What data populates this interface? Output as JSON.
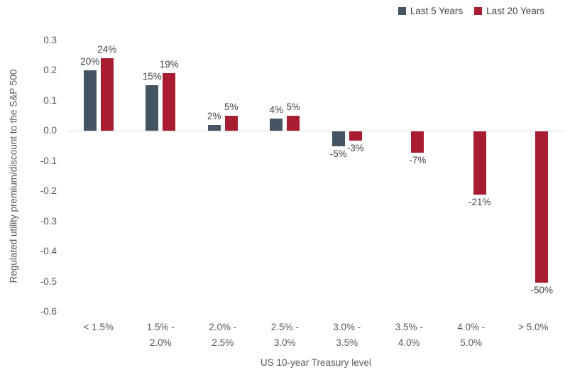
{
  "chart_data": {
    "type": "bar",
    "title": "",
    "xlabel": "US 10-year Treasury level",
    "ylabel": "Regulated utility premium/discount to the S&P 500",
    "categories": [
      "< 1.5%",
      "1.5% -\n2.0%",
      "2.0% -\n2.5%",
      "2.5% -\n3.0%",
      "3.0% -\n3.5%",
      "3.5% -\n4.0%",
      "4.0% -\n5.0%",
      "> 5.0%"
    ],
    "series": [
      {
        "name": "Last 5 Years",
        "color": "#445463",
        "values": [
          20,
          15,
          2,
          4,
          -5,
          null,
          null,
          null
        ],
        "labels": [
          "20%",
          "15%",
          "2%",
          "4%",
          "-5%",
          "",
          "",
          ""
        ]
      },
      {
        "name": "Last 20 Years",
        "color": "#A81D31",
        "values": [
          24,
          19,
          5,
          5,
          -3,
          -7,
          -21,
          -50
        ],
        "labels": [
          "24%",
          "19%",
          "5%",
          "5%",
          "-3%",
          "-7%",
          "-21%",
          "-50%"
        ]
      }
    ],
    "value_unit": "percent",
    "ylim": [
      -0.6,
      0.3
    ],
    "ytick_labels": [
      "0.3",
      "0.2",
      "0.1",
      "0.0",
      "-0.1",
      "-0.2",
      "-0.3",
      "-0.4",
      "-0.5",
      "-0.6"
    ],
    "yticks": [
      0.3,
      0.2,
      0.1,
      0.0,
      -0.1,
      -0.2,
      -0.3,
      -0.4,
      -0.5,
      -0.6
    ],
    "grid": false,
    "zero_line_color": "#d9d9d9",
    "axis_text_color": "#595959",
    "label_text_color": "#404040",
    "legend_position": "top-right"
  }
}
